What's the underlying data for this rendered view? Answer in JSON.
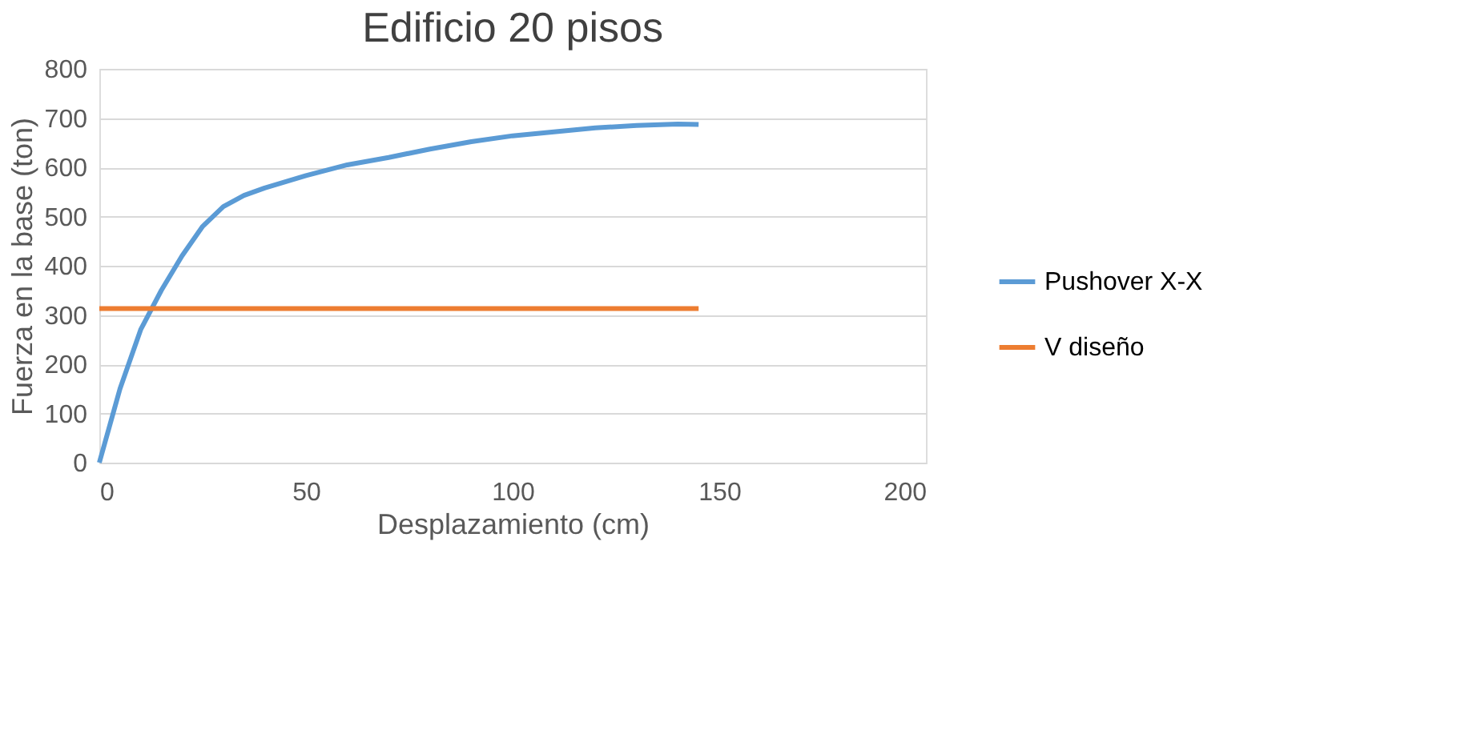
{
  "chart_data": {
    "type": "line",
    "title": "Edificio 20 pisos",
    "xlabel": "Desplazamiento (cm)",
    "ylabel": "Fuerza en la base (ton)",
    "xlim": [
      0,
      200
    ],
    "xticks": [
      0,
      50,
      100,
      150,
      200
    ],
    "ylim": [
      0,
      800
    ],
    "yticks": [
      0,
      100,
      200,
      300,
      400,
      500,
      600,
      700,
      800
    ],
    "grid": "y",
    "legend": "right",
    "line_style": "solid",
    "marker": "none",
    "series": [
      {
        "name": "Pushover X-X",
        "color": "#5b9bd5",
        "x": [
          0,
          5,
          10,
          15,
          20,
          25,
          30,
          35,
          40,
          50,
          60,
          70,
          80,
          90,
          100,
          110,
          120,
          130,
          140,
          145
        ],
        "values": [
          0,
          150,
          270,
          350,
          420,
          480,
          520,
          543,
          558,
          583,
          605,
          620,
          637,
          652,
          664,
          672,
          680,
          685,
          688,
          687
        ]
      },
      {
        "name": "V diseño",
        "color": "#ed7d31",
        "x": [
          0,
          145
        ],
        "values": [
          313,
          313
        ]
      }
    ]
  }
}
